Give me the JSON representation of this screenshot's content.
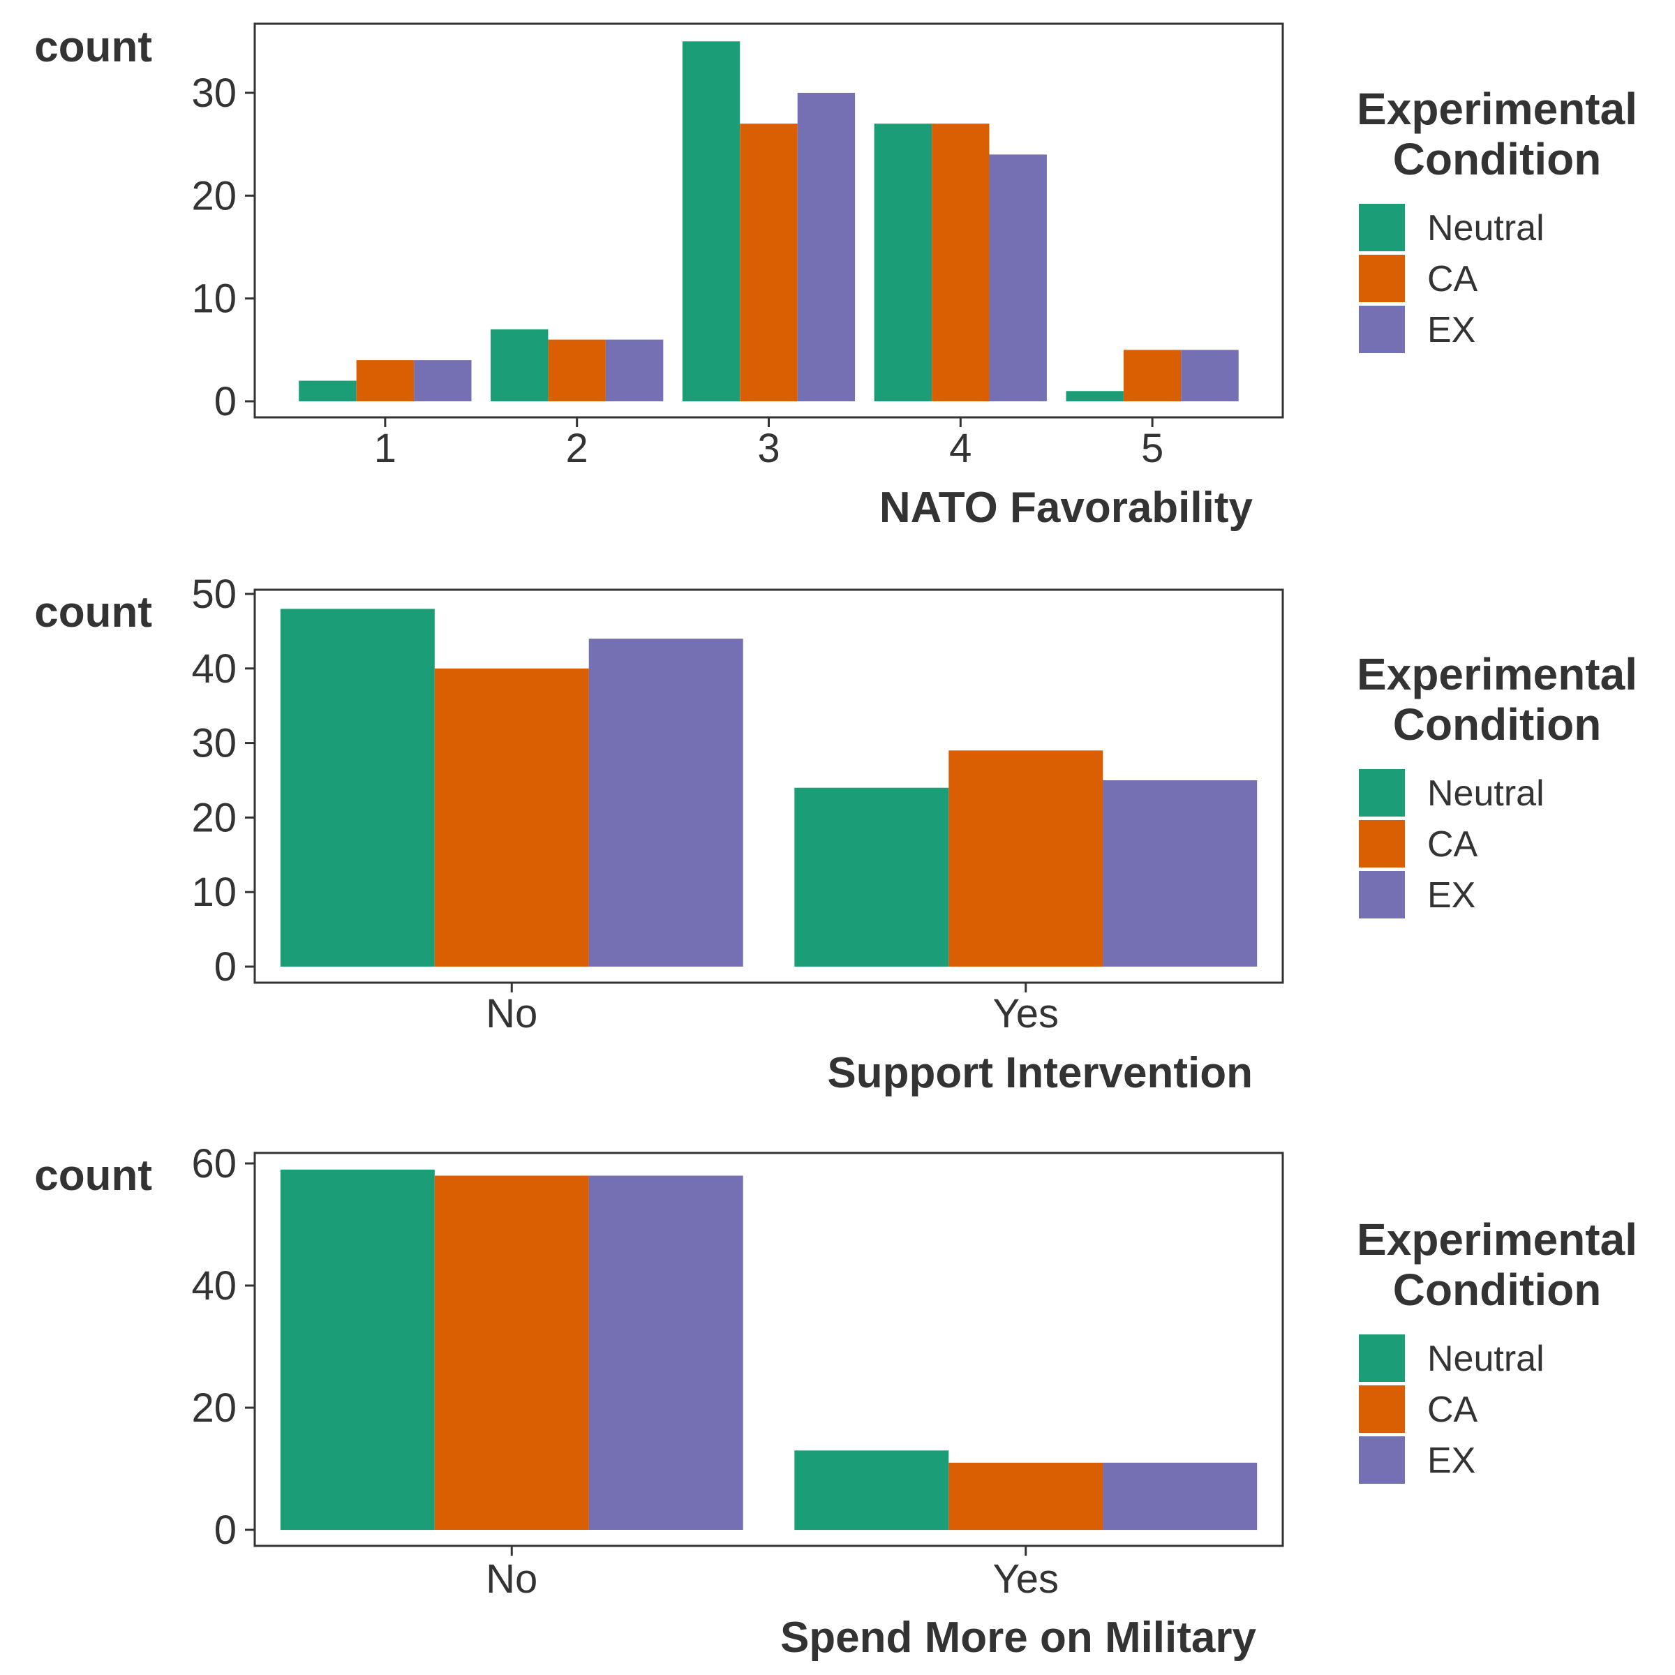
{
  "legend": {
    "title_line1": "Experimental",
    "title_line2": "Condition"
  },
  "chart_data": [
    {
      "type": "bar",
      "title": "",
      "xlabel": "NATO Favorability",
      "ylabel": "count",
      "categories": [
        "1",
        "2",
        "3",
        "4",
        "5"
      ],
      "ylim": [
        0,
        37
      ],
      "yticks": [
        0,
        10,
        20,
        30
      ],
      "grid": false,
      "legend_position": "right",
      "series": [
        {
          "name": "Neutral",
          "color": "#1b9e77",
          "values": [
            2,
            7,
            35,
            27,
            1
          ]
        },
        {
          "name": "CA",
          "color": "#d95f02",
          "values": [
            4,
            6,
            27,
            27,
            5
          ]
        },
        {
          "name": "EX",
          "color": "#7570b3",
          "values": [
            4,
            6,
            30,
            24,
            5
          ]
        }
      ]
    },
    {
      "type": "bar",
      "title": "",
      "xlabel": "Support Intervention",
      "ylabel": "count",
      "categories": [
        "No",
        "Yes"
      ],
      "ylim": [
        0,
        50
      ],
      "yticks": [
        0,
        10,
        20,
        30,
        40,
        50
      ],
      "grid": false,
      "legend_position": "right",
      "series": [
        {
          "name": "Neutral",
          "color": "#1b9e77",
          "values": [
            48,
            24
          ]
        },
        {
          "name": "CA",
          "color": "#d95f02",
          "values": [
            40,
            29
          ]
        },
        {
          "name": "EX",
          "color": "#7570b3",
          "values": [
            44,
            25
          ]
        }
      ]
    },
    {
      "type": "bar",
      "title": "",
      "xlabel": "Spend More on Military",
      "ylabel": "count",
      "categories": [
        "No",
        "Yes"
      ],
      "ylim": [
        0,
        60
      ],
      "yticks": [
        0,
        20,
        40,
        60
      ],
      "grid": false,
      "legend_position": "right",
      "series": [
        {
          "name": "Neutral",
          "color": "#1b9e77",
          "values": [
            59,
            13
          ]
        },
        {
          "name": "CA",
          "color": "#d95f02",
          "values": [
            58,
            11
          ]
        },
        {
          "name": "EX",
          "color": "#7570b3",
          "values": [
            58,
            11
          ]
        }
      ]
    }
  ]
}
